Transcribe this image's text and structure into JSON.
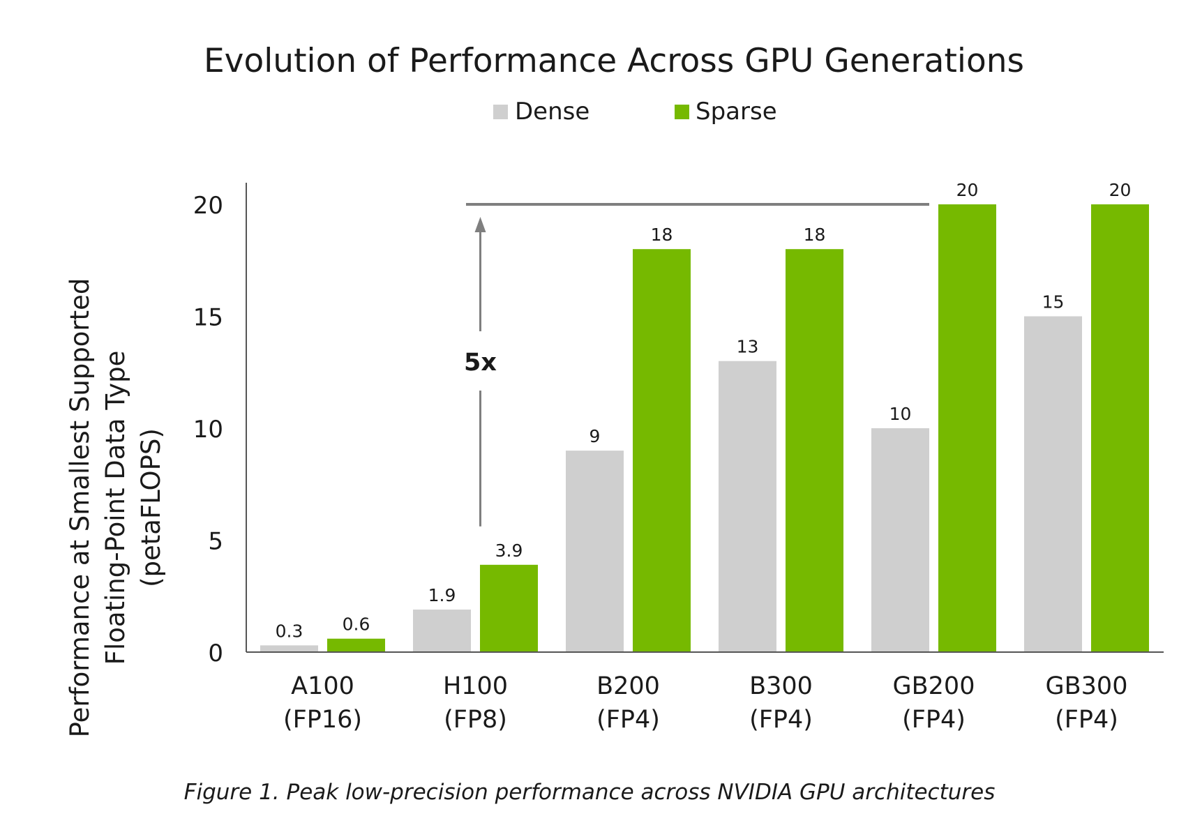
{
  "chart_data": {
    "type": "bar",
    "title": "Evolution of Performance Across GPU Generations",
    "ylabel_lines": [
      "Performance at Smallest Supported",
      "Floating-Point  Data Type",
      "(petaFLOPS)"
    ],
    "xlabel": "",
    "categories": [
      [
        "A100",
        "(FP16)"
      ],
      [
        "H100",
        "(FP8)"
      ],
      [
        "B200",
        "(FP4)"
      ],
      [
        "B300",
        "(FP4)"
      ],
      [
        "GB200",
        "(FP4)"
      ],
      [
        "GB300",
        "(FP4)"
      ]
    ],
    "series": [
      {
        "name": "Dense",
        "color": "#cfcfcf",
        "values": [
          0.3,
          1.9,
          9,
          13,
          10,
          15
        ],
        "labels": [
          "0.3",
          "1.9",
          "9",
          "13",
          "10",
          "15"
        ]
      },
      {
        "name": "Sparse",
        "color": "#76b900",
        "values": [
          0.6,
          3.9,
          18,
          18,
          20,
          20
        ],
        "labels": [
          "0.6",
          "3.9",
          "18",
          "18",
          "20",
          "20"
        ]
      }
    ],
    "ylim": [
      0,
      21
    ],
    "yticks": [
      0,
      5,
      10,
      15,
      20
    ],
    "grid": false,
    "legend_position": "top-center",
    "annotation": {
      "label": "5x",
      "from_value": 3.9,
      "to_value": 20,
      "category_index": 1
    }
  },
  "caption": "Figure 1. Peak low-precision performance across NVIDIA GPU architectures"
}
